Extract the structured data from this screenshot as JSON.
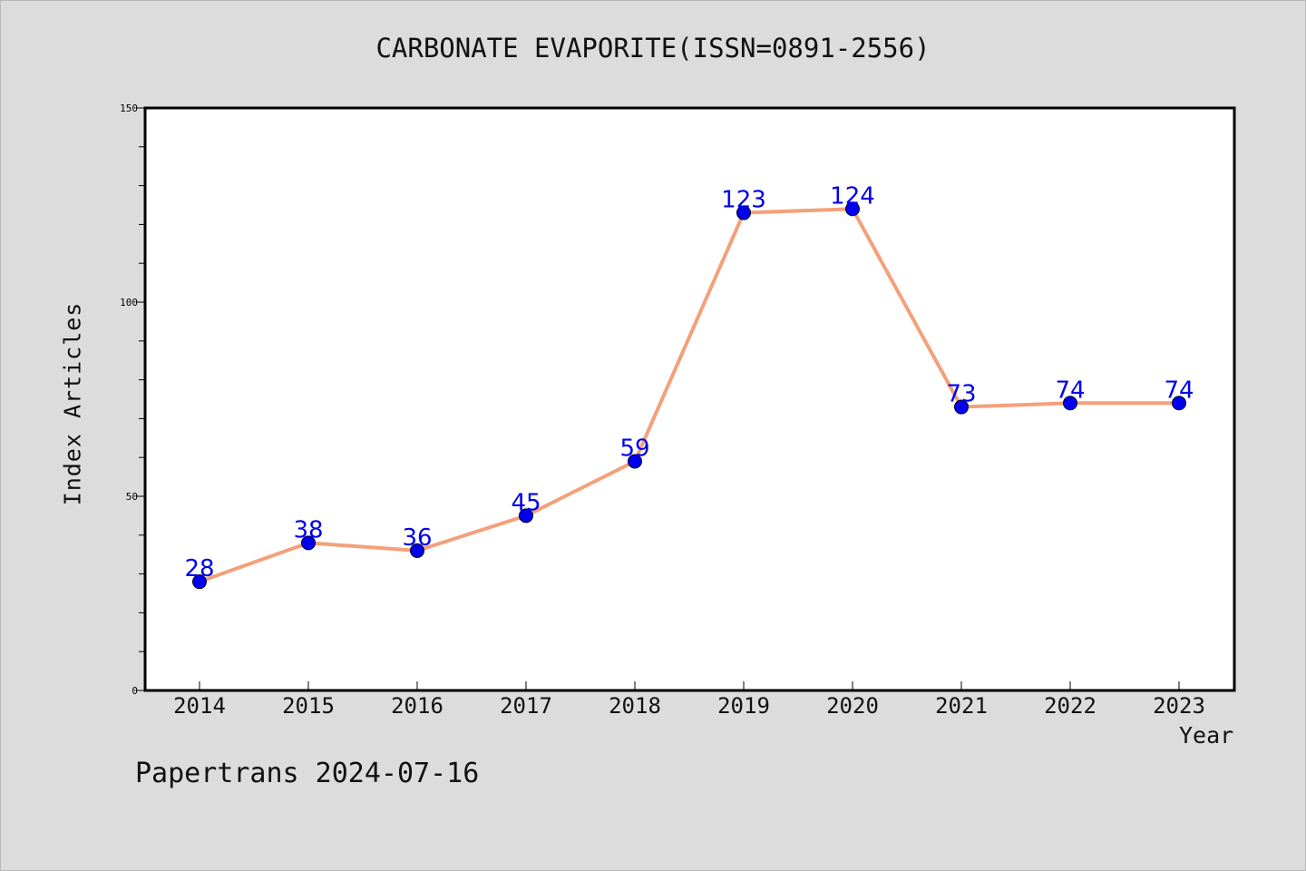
{
  "chart_data": {
    "type": "line",
    "title": "CARBONATE EVAPORITE(ISSN=0891-2556)",
    "xlabel": "Year",
    "ylabel": "Index Articles",
    "categories": [
      "2014",
      "2015",
      "2016",
      "2017",
      "2018",
      "2019",
      "2020",
      "2021",
      "2022",
      "2023"
    ],
    "values": [
      28,
      38,
      36,
      45,
      59,
      123,
      124,
      73,
      74,
      74
    ],
    "ylim": [
      0,
      150
    ],
    "yticks": [
      0,
      50,
      100,
      150
    ],
    "grid": false,
    "line_color": "#f4a07a",
    "marker_color": "#0000ee",
    "label_color": "#0000ee"
  },
  "footer": "Papertrans 2024-07-16"
}
